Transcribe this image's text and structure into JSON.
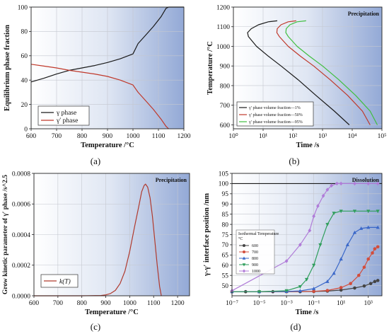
{
  "chart_data": [
    {
      "id": "a",
      "type": "line",
      "panel_label": "(a)",
      "xlabel": "Temperature /°C",
      "ylabel": "Equilibrium phase fraction",
      "xlim": [
        600,
        1200
      ],
      "ylim": [
        0,
        100
      ],
      "xticks": [
        600,
        700,
        800,
        900,
        1000,
        1100,
        1200
      ],
      "yticks": [
        0,
        20,
        40,
        60,
        80,
        100
      ],
      "grid": true,
      "legend_position": "bottom-left",
      "series": [
        {
          "name": "γ phase",
          "color": "#1a1a1a",
          "x": [
            600,
            650,
            700,
            750,
            800,
            850,
            900,
            950,
            1000,
            1020,
            1050,
            1080,
            1110,
            1130,
            1140,
            1200
          ],
          "y": [
            38.5,
            41.5,
            45,
            48,
            50,
            52,
            54.5,
            57.5,
            61.5,
            70,
            77,
            84,
            92,
            99,
            100,
            100
          ]
        },
        {
          "name": "γ′ phase",
          "color": "#c0392b",
          "x": [
            600,
            650,
            700,
            750,
            800,
            850,
            900,
            950,
            1000,
            1020,
            1050,
            1080,
            1110,
            1130,
            1140
          ],
          "y": [
            53,
            51.5,
            50,
            48,
            46.5,
            45,
            43,
            40,
            36,
            30,
            23,
            16,
            8,
            2,
            0
          ]
        }
      ]
    },
    {
      "id": "b",
      "type": "line",
      "panel_label": "(b)",
      "annotation": "Precipitation",
      "xlabel": "Time /s",
      "ylabel": "Temperature /°C",
      "xscale": "log",
      "xlim": [
        1,
        100000
      ],
      "ylim": [
        580,
        1200
      ],
      "xtick_labels": [
        "10⁰",
        "10¹",
        "10²",
        "10³",
        "10⁴",
        "10⁵"
      ],
      "yticks": [
        600,
        700,
        800,
        900,
        1000,
        1100,
        1200
      ],
      "grid": true,
      "legend_position": "bottom-left",
      "series": [
        {
          "name": "γ′ phase volume fraction—1%",
          "color": "#1a1a1a",
          "x": [
            30,
            15,
            7,
            4,
            3,
            3.2,
            6,
            15,
            40,
            150,
            600,
            2500,
            8000
          ],
          "y": [
            1130,
            1125,
            1110,
            1090,
            1070,
            1050,
            1000,
            950,
            900,
            830,
            750,
            670,
            600
          ]
        },
        {
          "name": "γ′ phase volume fraction—50%",
          "color": "#c0392b",
          "x": [
            130,
            70,
            40,
            30,
            29,
            35,
            70,
            180,
            500,
            1800,
            7000,
            22000,
            40000
          ],
          "y": [
            1130,
            1125,
            1110,
            1090,
            1070,
            1050,
            1000,
            950,
            900,
            830,
            750,
            670,
            600
          ]
        },
        {
          "name": "γ′ phase volume fraction—95%",
          "color": "#3fbf3f",
          "x": [
            280,
            140,
            80,
            60,
            58,
            70,
            140,
            360,
            1000,
            3500,
            13000,
            40000,
            70000
          ],
          "y": [
            1130,
            1125,
            1110,
            1090,
            1070,
            1050,
            1000,
            950,
            900,
            830,
            750,
            670,
            600
          ]
        }
      ]
    },
    {
      "id": "c",
      "type": "line",
      "panel_label": "(c)",
      "annotation": "Precipitation",
      "xlabel": "Temperature /°C",
      "ylabel": "Grow kinetic parameter of γ′ phase /s^2.5",
      "xlim": [
        600,
        1250
      ],
      "ylim": [
        0,
        0.0008
      ],
      "xticks": [
        600,
        700,
        800,
        900,
        1000,
        1100,
        1200
      ],
      "ytick_labels": [
        "0.0000",
        "0.0002",
        "0.0004",
        "0.0006",
        "0.0008"
      ],
      "grid": true,
      "legend_position": "bottom-left",
      "series": [
        {
          "name": "k(T)",
          "color": "#b03a2e",
          "x": [
            600,
            800,
            880,
            900,
            920,
            940,
            960,
            980,
            1000,
            1020,
            1040,
            1050,
            1060,
            1066,
            1075,
            1085,
            1095,
            1105,
            1115,
            1125,
            1132
          ],
          "y": [
            0,
            0,
            2e-06,
            6e-06,
            1.5e-05,
            3.5e-05,
            8e-05,
            0.00016,
            0.00029,
            0.00045,
            0.0006,
            0.00068,
            0.00072,
            0.00073,
            0.00071,
            0.00064,
            0.00052,
            0.00036,
            0.0002,
            6e-05,
            0
          ]
        }
      ]
    },
    {
      "id": "d",
      "type": "line",
      "panel_label": "(d)",
      "annotation": "Dissolution",
      "xlabel": "Time /s",
      "ylabel": "γ-γ′ interface position /nm",
      "xscale": "log",
      "xlim": [
        1e-07,
        10000
      ],
      "ylim": [
        45,
        105
      ],
      "xtick_labels": [
        "10⁻⁷",
        "10⁻⁵",
        "10⁻³",
        "10⁻¹",
        "10¹",
        "10³"
      ],
      "yticks": [
        50,
        55,
        60,
        65,
        70,
        75,
        80,
        85,
        90,
        95,
        100,
        105
      ],
      "grid": true,
      "legend_position": "left",
      "legend_title": "Isothermal Temperature, °C",
      "reference_line": {
        "y": 100,
        "color": "#1a1a1a"
      },
      "series": [
        {
          "name": "600",
          "color": "#444444",
          "marker": "circle",
          "x": [
            1e-07,
            1e-06,
            1e-05,
            0.0001,
            0.001,
            0.01,
            0.1,
            1,
            10,
            100,
            500,
            1500,
            3000,
            5000
          ],
          "y": [
            47,
            47,
            47,
            47,
            47,
            47,
            47.1,
            47.3,
            47.8,
            48.8,
            49.8,
            51,
            52,
            52.5
          ]
        },
        {
          "name": "700",
          "color": "#d24d3c",
          "marker": "circle",
          "x": [
            1e-07,
            1e-05,
            0.001,
            0.1,
            1,
            10,
            50,
            200,
            500,
            1000,
            2000,
            3000,
            5000
          ],
          "y": [
            47,
            47,
            47,
            47.2,
            47.6,
            49,
            51,
            55,
            59,
            63,
            66,
            68,
            69
          ]
        },
        {
          "name": "800",
          "color": "#3a67c8",
          "marker": "triangle-up",
          "x": [
            1e-07,
            1e-05,
            0.001,
            0.01,
            0.1,
            1,
            3,
            10,
            30,
            100,
            300,
            1000,
            5000
          ],
          "y": [
            47,
            47,
            47.1,
            47.4,
            48.5,
            52,
            56,
            63,
            70,
            76,
            78,
            78.5,
            78.5
          ]
        },
        {
          "name": "900",
          "color": "#2f9e5c",
          "marker": "triangle-down",
          "x": [
            1e-07,
            1e-05,
            0.001,
            0.01,
            0.03,
            0.1,
            0.3,
            1,
            3,
            10,
            100,
            1000,
            5000
          ],
          "y": [
            47,
            47,
            47.5,
            49.5,
            53,
            60,
            70,
            80,
            85.5,
            86.5,
            86.5,
            86.5,
            86.5
          ]
        },
        {
          "name": "1000",
          "color": "#b07cd8",
          "marker": "diamond",
          "x": [
            1e-07,
            0.001,
            0.01,
            0.05,
            0.1,
            0.2,
            0.5,
            1,
            2,
            5,
            10,
            100,
            1000,
            5000
          ],
          "y": [
            47.5,
            62,
            70,
            77,
            84,
            89,
            94,
            97,
            99,
            100,
            100,
            100,
            100,
            100
          ]
        }
      ]
    }
  ]
}
